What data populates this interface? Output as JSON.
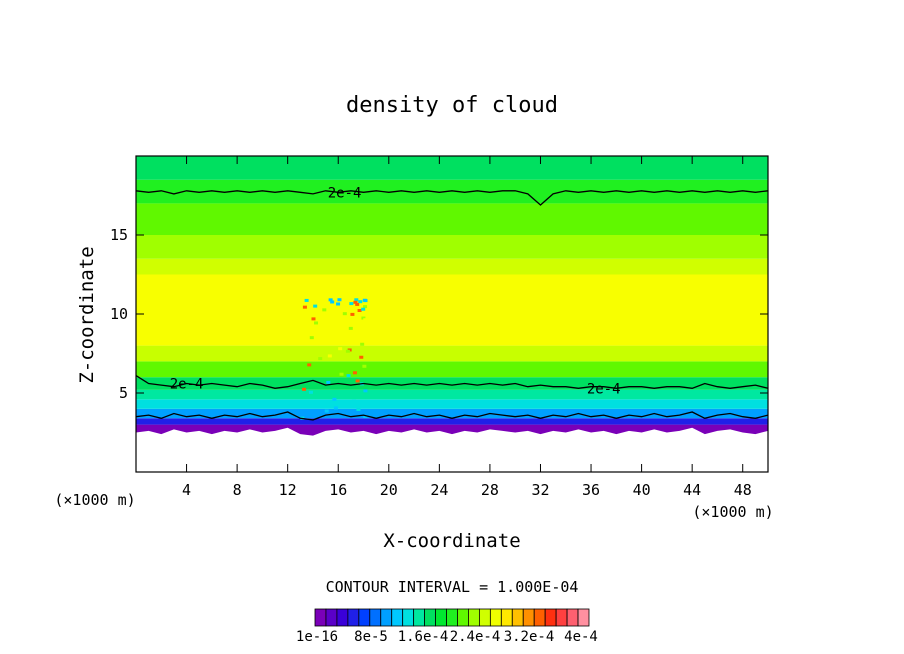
{
  "chart_data": {
    "type": "heatmap",
    "title": "density of cloud",
    "xlabel": "X-coordinate",
    "ylabel": "Z-coordinate",
    "x_unit_left": "(×1000 m)",
    "x_unit_right": "(×1000 m)",
    "xlim": [
      0,
      50
    ],
    "ylim": [
      0,
      20
    ],
    "x_ticks": [
      4,
      8,
      12,
      16,
      20,
      24,
      28,
      32,
      36,
      40,
      44,
      48
    ],
    "x_tick_labels": [
      "4",
      "8",
      "12",
      "16",
      "20",
      "24",
      "28",
      "32",
      "36",
      "40",
      "44",
      "48"
    ],
    "y_ticks": [
      5,
      10,
      15
    ],
    "y_tick_labels": [
      "5",
      "10",
      "15"
    ],
    "contour_interval_text": "CONTOUR INTERVAL = 1.000E-04",
    "contour_labels": [
      {
        "text": "2e-4",
        "x": 16.5,
        "z": 17.7
      },
      {
        "text": "2e-4",
        "x": 4.0,
        "z": 5.6
      },
      {
        "text": "2e-4",
        "x": 37.0,
        "z": 5.3
      }
    ],
    "colorbar": {
      "colors": [
        "#7a00b8",
        "#5a00c8",
        "#3a00d8",
        "#2020e8",
        "#0040ff",
        "#0070ff",
        "#00a0ff",
        "#00c8ff",
        "#00e0e0",
        "#00e8a0",
        "#00e060",
        "#00e830",
        "#20f020",
        "#60f800",
        "#a0ff00",
        "#d0ff00",
        "#f0ff00",
        "#ffe800",
        "#ffc000",
        "#ff9000",
        "#ff6000",
        "#ff3010",
        "#ff4040",
        "#ff6070",
        "#ff90a0"
      ],
      "labels": [
        "1e-16",
        "8e-5",
        "1.6e-4",
        "2.4e-4",
        "3.2e-4",
        "4e-4"
      ]
    },
    "bands": [
      {
        "z_from": 2.2,
        "z_to": 3.0,
        "color": "#7a00b8"
      },
      {
        "z_from": 3.0,
        "z_to": 3.4,
        "color": "#2020e8"
      },
      {
        "z_from": 3.4,
        "z_to": 4.0,
        "color": "#00a0ff"
      },
      {
        "z_from": 4.0,
        "z_to": 4.6,
        "color": "#00e0e0"
      },
      {
        "z_from": 4.6,
        "z_to": 5.2,
        "color": "#00e8a0"
      },
      {
        "z_from": 5.2,
        "z_to": 6.0,
        "color": "#00e060"
      },
      {
        "z_from": 6.0,
        "z_to": 7.0,
        "color": "#60f800"
      },
      {
        "z_from": 7.0,
        "z_to": 8.0,
        "color": "#c8ff00"
      },
      {
        "z_from": 8.0,
        "z_to": 12.5,
        "color": "#f8ff00"
      },
      {
        "z_from": 12.5,
        "z_to": 13.5,
        "color": "#d0ff00"
      },
      {
        "z_from": 13.5,
        "z_to": 15.0,
        "color": "#a0ff00"
      },
      {
        "z_from": 15.0,
        "z_to": 17.0,
        "color": "#60f800"
      },
      {
        "z_from": 17.0,
        "z_to": 18.5,
        "color": "#20f020"
      },
      {
        "z_from": 18.5,
        "z_to": 20.0,
        "color": "#00e060"
      }
    ],
    "contour_top_z": [
      17.8,
      17.7,
      17.8,
      17.6,
      17.8,
      17.7,
      17.8,
      17.7,
      17.8,
      17.7,
      17.8,
      17.7,
      17.8,
      17.7,
      17.6,
      17.8,
      17.7,
      17.8,
      17.7,
      17.8,
      17.7,
      17.8,
      17.7,
      17.8,
      17.7,
      17.8,
      17.7,
      17.8,
      17.7,
      17.8,
      17.8,
      17.6,
      16.9,
      17.6,
      17.8,
      17.7,
      17.8,
      17.7,
      17.8,
      17.7,
      17.8,
      17.7,
      17.8,
      17.7,
      17.8,
      17.7,
      17.8,
      17.7,
      17.8,
      17.7,
      17.8
    ],
    "contour_low_z": [
      6.1,
      5.6,
      5.5,
      5.4,
      5.6,
      5.5,
      5.6,
      5.5,
      5.4,
      5.6,
      5.5,
      5.3,
      5.4,
      5.6,
      5.8,
      5.5,
      5.6,
      5.5,
      5.6,
      5.5,
      5.6,
      5.5,
      5.6,
      5.5,
      5.6,
      5.5,
      5.6,
      5.5,
      5.6,
      5.5,
      5.6,
      5.4,
      5.5,
      5.4,
      5.4,
      5.3,
      5.4,
      5.4,
      5.3,
      5.4,
      5.4,
      5.3,
      5.4,
      5.4,
      5.3,
      5.6,
      5.4,
      5.3,
      5.4,
      5.5,
      5.3
    ],
    "cloud_base_z": [
      2.5,
      2.6,
      2.4,
      2.7,
      2.5,
      2.6,
      2.4,
      2.6,
      2.5,
      2.7,
      2.5,
      2.6,
      2.8,
      2.4,
      2.3,
      2.6,
      2.7,
      2.5,
      2.6,
      2.4,
      2.6,
      2.5,
      2.7,
      2.5,
      2.6,
      2.4,
      2.6,
      2.5,
      2.7,
      2.6,
      2.5,
      2.6,
      2.4,
      2.6,
      2.5,
      2.7,
      2.5,
      2.6,
      2.4,
      2.6,
      2.5,
      2.7,
      2.5,
      2.6,
      2.8,
      2.4,
      2.6,
      2.7,
      2.5,
      2.4,
      2.6
    ]
  }
}
